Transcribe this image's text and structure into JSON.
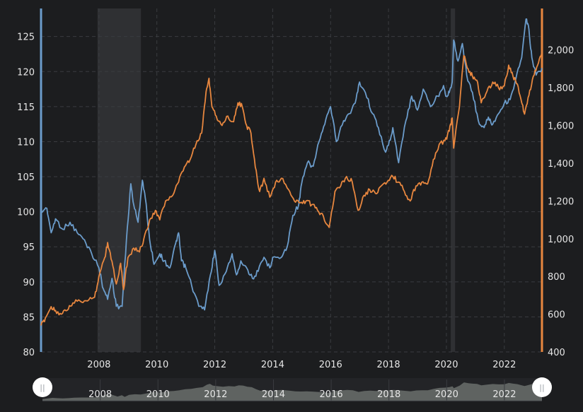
{
  "chart_data": {
    "type": "line",
    "title": "",
    "colors": {
      "left": "#6b9ccb",
      "right": "#e8873f",
      "background": "#1c1d1f",
      "grid": "#3a3c40",
      "shade": "#2f3033",
      "nav_area": "#5f6361",
      "handle": "#ffffff"
    },
    "x_range": [
      2006.0,
      2023.3
    ],
    "x_ticks": [
      2008,
      2010,
      2012,
      2014,
      2016,
      2018,
      2020,
      2022
    ],
    "x_tick_labels": [
      "2008",
      "2010",
      "2012",
      "2014",
      "2016",
      "2018",
      "2020",
      "2022"
    ],
    "left_axis": {
      "range": [
        80,
        129
      ],
      "ticks": [
        80,
        85,
        90,
        95,
        100,
        105,
        110,
        115,
        120,
        125
      ],
      "tick_labels": [
        "80",
        "85",
        "90",
        "95",
        "100",
        "105",
        "110",
        "115",
        "120",
        "125"
      ]
    },
    "right_axis": {
      "range": [
        400,
        2220
      ],
      "ticks": [
        400,
        600,
        800,
        1000,
        1200,
        1400,
        1600,
        1800,
        2000
      ],
      "tick_labels": [
        "400",
        "600",
        "800",
        "1,000",
        "1,200",
        "1,400",
        "1,600",
        "1,800",
        "2,000"
      ]
    },
    "shaded_periods": [
      [
        2007.95,
        2009.45
      ],
      [
        2020.15,
        2020.3
      ]
    ],
    "series": [
      {
        "name": "left",
        "axis": "left",
        "points": [
          [
            2006.0,
            100.0
          ],
          [
            2006.2,
            100.5
          ],
          [
            2006.35,
            97.0
          ],
          [
            2006.5,
            99.0
          ],
          [
            2006.75,
            97.5
          ],
          [
            2007.0,
            98.5
          ],
          [
            2007.25,
            97.0
          ],
          [
            2007.5,
            96.0
          ],
          [
            2007.75,
            94.0
          ],
          [
            2008.0,
            92.0
          ],
          [
            2008.15,
            89.0
          ],
          [
            2008.3,
            87.5
          ],
          [
            2008.45,
            90.5
          ],
          [
            2008.6,
            86.5
          ],
          [
            2008.8,
            86.5
          ],
          [
            2008.95,
            96.0
          ],
          [
            2009.1,
            104.0
          ],
          [
            2009.2,
            101.0
          ],
          [
            2009.35,
            98.5
          ],
          [
            2009.5,
            104.5
          ],
          [
            2009.6,
            102.0
          ],
          [
            2009.75,
            96.0
          ],
          [
            2009.9,
            92.5
          ],
          [
            2010.1,
            94.0
          ],
          [
            2010.25,
            93.0
          ],
          [
            2010.45,
            92.0
          ],
          [
            2010.65,
            95.5
          ],
          [
            2010.75,
            97.0
          ],
          [
            2010.85,
            93.0
          ],
          [
            2011.0,
            92.0
          ],
          [
            2011.2,
            89.5
          ],
          [
            2011.45,
            86.5
          ],
          [
            2011.65,
            86.0
          ],
          [
            2011.85,
            91.0
          ],
          [
            2012.0,
            94.5
          ],
          [
            2012.15,
            89.5
          ],
          [
            2012.4,
            91.5
          ],
          [
            2012.6,
            94.0
          ],
          [
            2012.75,
            91.0
          ],
          [
            2012.9,
            93.0
          ],
          [
            2013.1,
            92.0
          ],
          [
            2013.3,
            90.5
          ],
          [
            2013.5,
            91.5
          ],
          [
            2013.7,
            93.5
          ],
          [
            2013.9,
            92.0
          ],
          [
            2014.0,
            93.5
          ],
          [
            2014.3,
            93.5
          ],
          [
            2014.5,
            95.0
          ],
          [
            2014.7,
            99.5
          ],
          [
            2014.9,
            101.0
          ],
          [
            2015.0,
            104.0
          ],
          [
            2015.2,
            107.0
          ],
          [
            2015.4,
            106.5
          ],
          [
            2015.6,
            110.0
          ],
          [
            2015.8,
            112.5
          ],
          [
            2016.0,
            115.0
          ],
          [
            2016.2,
            110.0
          ],
          [
            2016.45,
            113.0
          ],
          [
            2016.65,
            114.0
          ],
          [
            2016.85,
            115.5
          ],
          [
            2017.0,
            118.5
          ],
          [
            2017.2,
            117.0
          ],
          [
            2017.45,
            114.0
          ],
          [
            2017.65,
            112.0
          ],
          [
            2017.9,
            108.5
          ],
          [
            2018.0,
            109.5
          ],
          [
            2018.15,
            112.0
          ],
          [
            2018.35,
            107.0
          ],
          [
            2018.6,
            113.0
          ],
          [
            2018.8,
            116.5
          ],
          [
            2019.0,
            114.5
          ],
          [
            2019.2,
            117.5
          ],
          [
            2019.45,
            115.0
          ],
          [
            2019.7,
            116.5
          ],
          [
            2019.9,
            118.0
          ],
          [
            2020.0,
            116.5
          ],
          [
            2020.1,
            117.0
          ],
          [
            2020.2,
            118.5
          ],
          [
            2020.25,
            124.5
          ],
          [
            2020.4,
            121.5
          ],
          [
            2020.55,
            124.0
          ],
          [
            2020.7,
            119.5
          ],
          [
            2020.9,
            117.0
          ],
          [
            2021.1,
            113.0
          ],
          [
            2021.3,
            112.0
          ],
          [
            2021.45,
            113.5
          ],
          [
            2021.6,
            112.5
          ],
          [
            2021.8,
            114.0
          ],
          [
            2022.0,
            115.5
          ],
          [
            2022.2,
            116.0
          ],
          [
            2022.4,
            119.0
          ],
          [
            2022.6,
            122.0
          ],
          [
            2022.75,
            127.5
          ],
          [
            2022.85,
            126.0
          ],
          [
            2022.95,
            122.0
          ],
          [
            2023.1,
            119.5
          ],
          [
            2023.3,
            120.5
          ]
        ]
      },
      {
        "name": "right",
        "axis": "right",
        "points": [
          [
            2006.0,
            540
          ],
          [
            2006.15,
            580
          ],
          [
            2006.35,
            640
          ],
          [
            2006.5,
            620
          ],
          [
            2006.7,
            600
          ],
          [
            2006.9,
            620
          ],
          [
            2007.1,
            660
          ],
          [
            2007.35,
            670
          ],
          [
            2007.6,
            670
          ],
          [
            2007.85,
            690
          ],
          [
            2008.0,
            800
          ],
          [
            2008.2,
            900
          ],
          [
            2008.3,
            980
          ],
          [
            2008.45,
            880
          ],
          [
            2008.6,
            760
          ],
          [
            2008.75,
            870
          ],
          [
            2008.85,
            730
          ],
          [
            2009.0,
            900
          ],
          [
            2009.2,
            950
          ],
          [
            2009.4,
            930
          ],
          [
            2009.55,
            1000
          ],
          [
            2009.75,
            1100
          ],
          [
            2009.95,
            1150
          ],
          [
            2010.1,
            1100
          ],
          [
            2010.3,
            1200
          ],
          [
            2010.55,
            1230
          ],
          [
            2010.75,
            1300
          ],
          [
            2010.95,
            1380
          ],
          [
            2011.15,
            1420
          ],
          [
            2011.35,
            1500
          ],
          [
            2011.55,
            1560
          ],
          [
            2011.7,
            1780
          ],
          [
            2011.8,
            1850
          ],
          [
            2011.9,
            1700
          ],
          [
            2012.05,
            1650
          ],
          [
            2012.25,
            1600
          ],
          [
            2012.45,
            1650
          ],
          [
            2012.65,
            1620
          ],
          [
            2012.8,
            1720
          ],
          [
            2012.95,
            1700
          ],
          [
            2013.1,
            1600
          ],
          [
            2013.25,
            1560
          ],
          [
            2013.4,
            1380
          ],
          [
            2013.55,
            1250
          ],
          [
            2013.7,
            1320
          ],
          [
            2013.9,
            1220
          ],
          [
            2014.1,
            1300
          ],
          [
            2014.3,
            1320
          ],
          [
            2014.55,
            1260
          ],
          [
            2014.75,
            1200
          ],
          [
            2014.95,
            1190
          ],
          [
            2015.15,
            1200
          ],
          [
            2015.35,
            1180
          ],
          [
            2015.55,
            1150
          ],
          [
            2015.75,
            1120
          ],
          [
            2015.95,
            1060
          ],
          [
            2016.15,
            1250
          ],
          [
            2016.35,
            1280
          ],
          [
            2016.55,
            1330
          ],
          [
            2016.75,
            1300
          ],
          [
            2016.95,
            1150
          ],
          [
            2017.15,
            1230
          ],
          [
            2017.35,
            1260
          ],
          [
            2017.55,
            1240
          ],
          [
            2017.75,
            1280
          ],
          [
            2017.95,
            1300
          ],
          [
            2018.15,
            1330
          ],
          [
            2018.35,
            1300
          ],
          [
            2018.55,
            1250
          ],
          [
            2018.75,
            1200
          ],
          [
            2018.95,
            1280
          ],
          [
            2019.15,
            1300
          ],
          [
            2019.35,
            1290
          ],
          [
            2019.55,
            1420
          ],
          [
            2019.75,
            1500
          ],
          [
            2019.95,
            1520
          ],
          [
            2020.1,
            1570
          ],
          [
            2020.2,
            1640
          ],
          [
            2020.25,
            1480
          ],
          [
            2020.45,
            1700
          ],
          [
            2020.6,
            1970
          ],
          [
            2020.75,
            1900
          ],
          [
            2020.9,
            1860
          ],
          [
            2021.05,
            1840
          ],
          [
            2021.2,
            1720
          ],
          [
            2021.4,
            1780
          ],
          [
            2021.6,
            1830
          ],
          [
            2021.8,
            1800
          ],
          [
            2022.0,
            1810
          ],
          [
            2022.15,
            1920
          ],
          [
            2022.3,
            1860
          ],
          [
            2022.45,
            1820
          ],
          [
            2022.6,
            1720
          ],
          [
            2022.7,
            1660
          ],
          [
            2022.85,
            1760
          ],
          [
            2023.0,
            1860
          ],
          [
            2023.15,
            1920
          ],
          [
            2023.3,
            1990
          ]
        ]
      }
    ],
    "navigator": {
      "x_ticks": [
        2008,
        2010,
        2012,
        2014,
        2016,
        2018,
        2020,
        2022
      ],
      "tick_labels": [
        "2008",
        "2010",
        "2012",
        "2014",
        "2016",
        "2018",
        "2020",
        "2022"
      ],
      "handle_left_label": "||",
      "handle_right_label": "||"
    }
  }
}
